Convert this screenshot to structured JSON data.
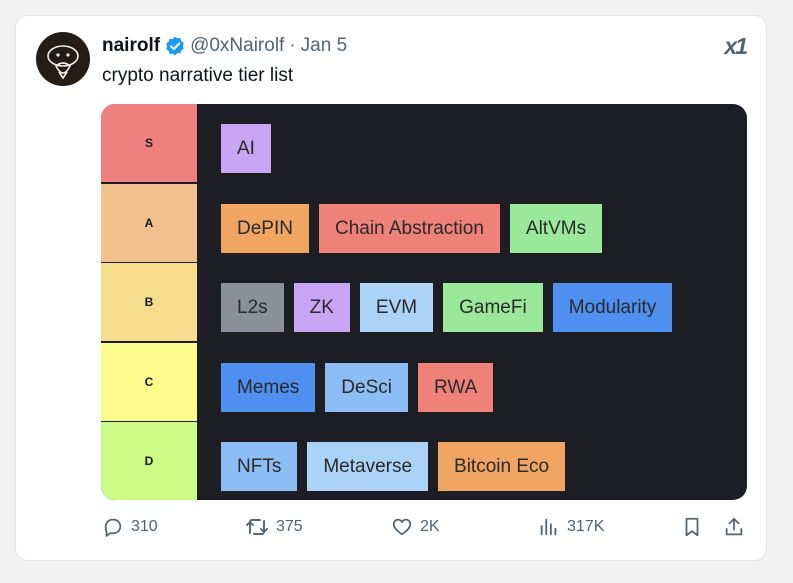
{
  "tweet": {
    "author": {
      "display_name": "nairolf",
      "handle": "@0xNairolf",
      "separator": "·",
      "date": "Jan 5",
      "verified": true,
      "verified_color": "#1d9bf0"
    },
    "text": "crypto narrative tier list",
    "logo_text": "x1",
    "tier_list": {
      "tiers": [
        {
          "label": "S",
          "color": "#f08080",
          "items": [
            {
              "name": "AI",
              "color": "#c8a5f5"
            }
          ]
        },
        {
          "label": "A",
          "color": "#f2c08c",
          "items": [
            {
              "name": "DePIN",
              "color": "#f0a562"
            },
            {
              "name": "Chain Abstraction",
              "color": "#ee8278"
            },
            {
              "name": "AltVMs",
              "color": "#9ae89a"
            }
          ]
        },
        {
          "label": "B",
          "color": "#f6dd8d",
          "items": [
            {
              "name": "L2s",
              "color": "#8a8f99"
            },
            {
              "name": "ZK",
              "color": "#c8a5f5"
            },
            {
              "name": "EVM",
              "color": "#aad3f7"
            },
            {
              "name": "GameFi",
              "color": "#9ae89a"
            },
            {
              "name": "Modularity",
              "color": "#4f8ff0"
            }
          ]
        },
        {
          "label": "C",
          "color": "#fbfb8c",
          "items": [
            {
              "name": "Memes",
              "color": "#4f8ff0"
            },
            {
              "name": "DeSci",
              "color": "#8cbdf5"
            },
            {
              "name": "RWA",
              "color": "#ee8278"
            }
          ]
        },
        {
          "label": "D",
          "color": "#cbfb85",
          "items": [
            {
              "name": "NFTs",
              "color": "#8cbdf5"
            },
            {
              "name": "Metaverse",
              "color": "#aad3f7"
            },
            {
              "name": "Bitcoin Eco",
              "color": "#f0a562"
            }
          ]
        }
      ]
    },
    "actions": {
      "replies": {
        "icon": "reply-icon",
        "count": "310"
      },
      "reposts": {
        "icon": "repost-icon",
        "count": "375"
      },
      "likes": {
        "icon": "heart-icon",
        "count": "2K"
      },
      "views": {
        "icon": "views-icon",
        "count": "317K"
      },
      "bookmark": {
        "icon": "bookmark-icon"
      },
      "share": {
        "icon": "share-icon"
      }
    }
  }
}
